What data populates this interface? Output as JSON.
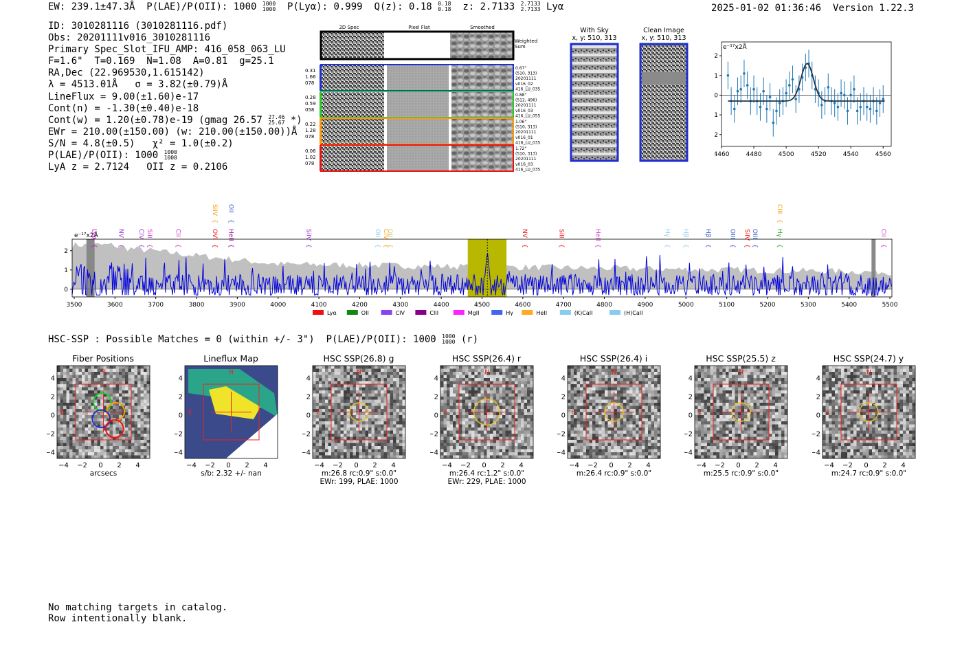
{
  "header": {
    "ew": "EW: 239.1±47.3Å",
    "plae": "P(LAE)/P(OII): 1000",
    "plae_hi": "1000",
    "plae_lo": "1000",
    "plya": "P(Lyα): 0.999",
    "qz": "Q(z): 0.18",
    "qz_hi": "0.18",
    "qz_lo": "0.18",
    "z": "z: 2.7133",
    "z_hi": "2.7133",
    "z_lo": "2.7133",
    "z_line": "Lyα",
    "timestamp": "2025-01-02 01:36:46",
    "version": "Version 1.22.3"
  },
  "info": {
    "id": "ID: 3010281116 (3010281116.pdf)",
    "obs": "Obs: 20201111v016_3010281116",
    "primary": "Primary Spec_Slot_IFU_AMP: 416_058_063_LU",
    "params": "F=1.6\"  T=0.169  N=1.08  A=0.81  g=25.1",
    "radec": "RA,Dec (22.969530,1.615142)",
    "lambda": "λ = 4513.01Å   σ = 3.82(±0.79)Å",
    "lineflux": "LineFlux = 9.00(±1.60)e-17",
    "contn": "Cont(n) = -1.30(±0.40)e-18",
    "contw": "Cont(w) = 1.20(±0.78)e-19 (gmag 26.57",
    "contw_hi": "27.46",
    "contw_lo": "25.67",
    "contw_end": "*)",
    "ewr": "EWr = 210.00(±150.00) (w: 210.00(±150.00))Å",
    "sn": "S/N = 4.8(±0.5)   χ² = 1.0(±0.2)",
    "plae": "P(LAE)/P(OII): 1000",
    "plae_hi": "1000",
    "plae_lo": "1000",
    "lya": "LyA z = 2.7124   OII z = 0.2106"
  },
  "cutouts": {
    "col_headers": [
      "2D Spec",
      "Pixel Flat",
      "Smoothed"
    ],
    "weighted_sum": [
      "Weighted",
      "Sum"
    ],
    "rows": [
      {
        "left": [
          "0.31",
          "1.66",
          "078"
        ],
        "right": [
          "0.67\"",
          "(510, 313)",
          "20201111",
          "v016_02",
          "416_LU_035"
        ],
        "color": "#1f2fd0"
      },
      {
        "left": [
          "0.28",
          "0.59",
          "058"
        ],
        "right": [
          "0.88\"",
          "(512, 496)",
          "20201111",
          "v016_03",
          "416_LU_055"
        ],
        "color": "#22cc22"
      },
      {
        "left": [
          "0.22",
          "1.28",
          "078"
        ],
        "right": [
          "1.06\"",
          "(510, 313)",
          "20201111",
          "v016_01",
          "416_LU_035"
        ],
        "color": "#ff9900"
      },
      {
        "left": [
          "0.06",
          "1.02",
          "078"
        ],
        "right": [
          "1.72\"",
          "(510, 313)",
          "20201111",
          "v016_03",
          "416_LU_035"
        ],
        "color": "#ee1111"
      }
    ],
    "with_sky": [
      "With Sky",
      "x, y: 510, 313"
    ],
    "clean": [
      "Clean Image",
      "x, y: 510, 313"
    ]
  },
  "colors": {
    "blue": "#1f2fd0",
    "green": "#22cc22",
    "orange": "#ff9900",
    "red": "#ee1111",
    "fit": "#1f77b4",
    "band": "#b8b800",
    "spec": "#0000dd",
    "err": "#c0c0c0"
  },
  "chart_data": [
    {
      "type": "scatter",
      "title": "",
      "ylabel": "e⁻¹⁷x2Å",
      "xlim": [
        4460,
        4565
      ],
      "ylim": [
        -2.6,
        2.7
      ],
      "xticks": [
        4460,
        4480,
        4500,
        4520,
        4540,
        4560
      ],
      "yticks": [
        -2,
        -1,
        0,
        1,
        2
      ],
      "x": [
        4464,
        4466,
        4468,
        4470,
        4472,
        4474,
        4476,
        4478,
        4480,
        4482,
        4484,
        4486,
        4488,
        4490,
        4492,
        4494,
        4496,
        4498,
        4500,
        4502,
        4504,
        4506,
        4508,
        4510,
        4512,
        4514,
        4516,
        4518,
        4520,
        4522,
        4524,
        4526,
        4528,
        4530,
        4532,
        4534,
        4536,
        4538,
        4540,
        4542,
        4544,
        4546,
        4548,
        4550,
        4552,
        4554,
        4556,
        4558,
        4560
      ],
      "y": [
        1.0,
        -0.3,
        -0.7,
        0.2,
        0.3,
        1.1,
        0.5,
        -0.3,
        0.3,
        -0.3,
        -0.6,
        0.2,
        -0.7,
        -0.1,
        -1.4,
        -0.8,
        -0.4,
        -0.3,
        0.1,
        0.5,
        0.8,
        -0.2,
        0.3,
        0.9,
        1.4,
        1.6,
        1.0,
        0.3,
        0.1,
        -0.5,
        -0.3,
        0.4,
        -0.3,
        -0.4,
        -0.6,
        0.1,
        0.0,
        -0.8,
        0.0,
        0.3,
        -0.8,
        -0.6,
        -0.3,
        -0.6,
        -0.7,
        -0.3,
        -0.8,
        -0.4,
        -0.2
      ],
      "err": 0.7,
      "fit": {
        "center": 4513.0,
        "sigma": 3.82,
        "amplitude": 1.9,
        "baseline": -0.3
      }
    },
    {
      "type": "line",
      "xlim": [
        3495,
        5505
      ],
      "ylim": [
        -0.4,
        2.6
      ],
      "xticks": [
        3500,
        3600,
        3700,
        3800,
        3900,
        4000,
        4100,
        4200,
        4300,
        4400,
        4500,
        4600,
        4700,
        4800,
        4900,
        5000,
        5100,
        5200,
        5300,
        5400,
        5500
      ],
      "yticks": [
        0,
        1,
        2
      ],
      "ylabel": "e⁻¹⁷x2Å",
      "highlight_band": [
        4465,
        4560
      ],
      "line_center": 4513,
      "shaded_regions": [
        [
          3530,
          3550
        ],
        [
          5455,
          5465
        ]
      ],
      "line_labels": [
        {
          "name": "Lyα",
          "x": 3545,
          "color": "#cc00cc",
          "row": 1
        },
        {
          "name": "NV",
          "x": 3610,
          "color": "#9933cc",
          "row": 1
        },
        {
          "name": "CIV",
          "x": 3660,
          "color": "#9933cc",
          "row": 1
        },
        {
          "name": "SiII",
          "x": 3680,
          "color": "#cc33cc",
          "row": 1
        },
        {
          "name": "CII",
          "x": 3750,
          "color": "#cc33cc",
          "row": 1
        },
        {
          "name": "SiIV",
          "x": 3840,
          "color": "#ff9900",
          "row": 0
        },
        {
          "name": "OII",
          "x": 3880,
          "color": "#3355cc",
          "row": 0
        },
        {
          "name": "OVI",
          "x": 3840,
          "color": "#ee1111",
          "row": 1
        },
        {
          "name": "HeII",
          "x": 3880,
          "color": "#990099",
          "row": 1
        },
        {
          "name": "SiIV",
          "x": 4070,
          "color": "#9933cc",
          "row": 1
        },
        {
          "name": "OII",
          "x": 4240,
          "color": "#88ccee",
          "row": 1
        },
        {
          "name": "CIV",
          "x": 4260,
          "color": "#ff9900",
          "row": 1
        },
        {
          "name": "OII",
          "x": 4270,
          "color": "#cccc66",
          "row": 1
        },
        {
          "name": "NV",
          "x": 4600,
          "color": "#ee1111",
          "row": 1
        },
        {
          "name": "SiII",
          "x": 4690,
          "color": "#ee1111",
          "row": 1
        },
        {
          "name": "HeII",
          "x": 4780,
          "color": "#cc33cc",
          "row": 1
        },
        {
          "name": "Hγ",
          "x": 4950,
          "color": "#88ccee",
          "row": 1
        },
        {
          "name": "Hβ",
          "x": 4995,
          "color": "#88ccee",
          "row": 1
        },
        {
          "name": "Hβ",
          "x": 5050,
          "color": "#3355cc",
          "row": 1
        },
        {
          "name": "OIII",
          "x": 5110,
          "color": "#3355cc",
          "row": 1
        },
        {
          "name": "SiIV",
          "x": 5145,
          "color": "#ee1111",
          "row": 1
        },
        {
          "name": "OIII",
          "x": 5165,
          "color": "#3355cc",
          "row": 1
        },
        {
          "name": "Hγ",
          "x": 5225,
          "color": "#22aa22",
          "row": 1
        },
        {
          "name": "CIII",
          "x": 5225,
          "color": "#ff9900",
          "row": 0
        },
        {
          "name": "CII",
          "x": 5480,
          "color": "#cc33cc",
          "row": 1
        }
      ],
      "legend": [
        {
          "name": "Lyα",
          "color": "#ee1111"
        },
        {
          "name": "OII",
          "color": "#118811"
        },
        {
          "name": "CIV",
          "color": "#8844ee"
        },
        {
          "name": "CIII",
          "color": "#880088"
        },
        {
          "name": "MgII",
          "color": "#ff22ff"
        },
        {
          "name": "Hγ",
          "color": "#4466ee"
        },
        {
          "name": "HeII",
          "color": "#ffaa22"
        },
        {
          "name": "(K)CaII",
          "color": "#88ccee"
        },
        {
          "name": "(H)CaII",
          "color": "#88ccee"
        }
      ]
    }
  ],
  "hsc": {
    "title": "HSC-SSP : Possible Matches = 0 (within +/- 3\")  P(LAE)/P(OII): 1000",
    "title_hi": "1000",
    "title_lo": "1000",
    "title_end": "(r)",
    "panels": [
      {
        "title": "Fiber Positions",
        "caption": [
          "arcsecs"
        ]
      },
      {
        "title": "Lineflux Map",
        "caption": [
          "s/b: 2.32 +/- nan"
        ]
      },
      {
        "title": "HSC SSP(26.8) g",
        "caption": [
          "m:26.8 rc:0.9\"  s:0.0\"",
          "EWr: 199, PLAE: 1000"
        ]
      },
      {
        "title": "HSC SSP(26.4) r",
        "caption": [
          "m:26.4 rc:1.2\"  s:0.0\"",
          "EWr: 229, PLAE: 1000"
        ]
      },
      {
        "title": "HSC SSP(26.4) i",
        "caption": [
          "m:26.4 rc:0.9\"  s:0.0\""
        ]
      },
      {
        "title": "HSC SSP(25.5) z",
        "caption": [
          "m:25.5 rc:0.9\"  s:0.0\""
        ]
      },
      {
        "title": "HSC SSP(24.7) y",
        "caption": [
          "m:24.7 rc:0.9\"  s:0.0\""
        ]
      }
    ],
    "ticks": [
      "−4",
      "−2",
      "0",
      "2",
      "4"
    ],
    "compass_n": "N",
    "compass_e": "E"
  },
  "footer": {
    "line1": "No matching targets in catalog.",
    "line2": "Row intentionally blank."
  }
}
